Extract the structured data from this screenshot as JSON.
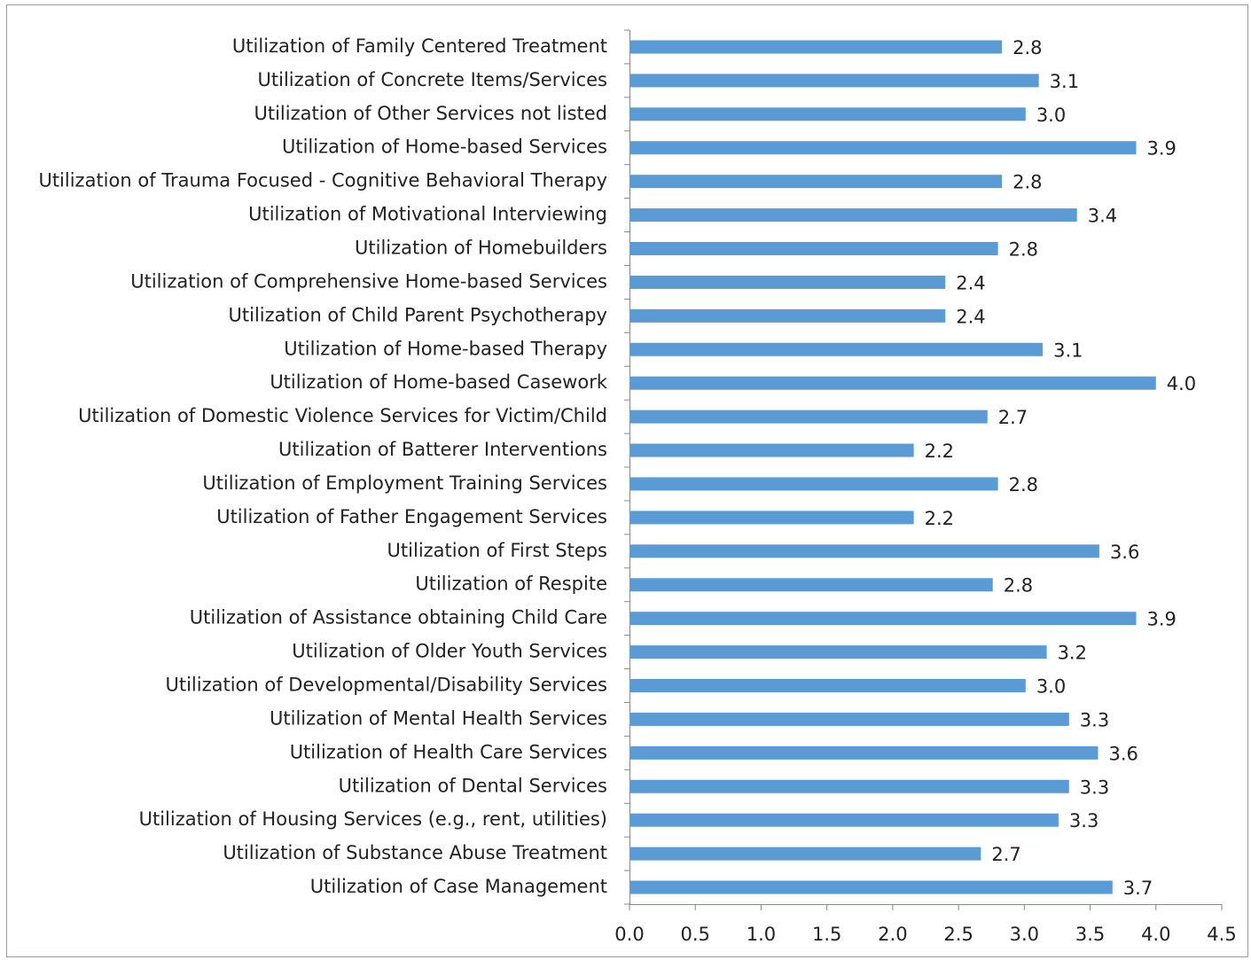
{
  "chart_data": {
    "type": "barh",
    "categories": [
      "Utilization of Family Centered  Treatment",
      "Utilization of Concrete Items/Services",
      "Utilization of Other Services not listed",
      "Utilization of Home-based Services",
      "Utilization of Trauma Focused - Cognitive Behavioral Therapy",
      "Utilization of Motivational Interviewing",
      "Utilization of Homebuilders",
      "Utilization of Comprehensive Home-based Services",
      "Utilization of Child Parent Psychotherapy",
      "Utilization of Home-based Therapy",
      "Utilization of Home-based Casework",
      "Utilization of Domestic Violence Services for Victim/Child",
      "Utilization of Batterer Interventions",
      "Utilization of Employment Training Services",
      "Utilization of Father Engagement Services",
      "Utilization of First Steps",
      "Utilization of Respite",
      "Utilization of Assistance obtaining Child Care",
      "Utilization of Older Youth Services",
      "Utilization of Developmental/Disability Services",
      "Utilization of Mental Health Services",
      "Utilization of Health Care Services",
      "Utilization of Dental Services",
      "Utilization of Housing Services (e.g., rent, utilities)",
      "Utilization of Substance Abuse Treatment",
      "Utilization of Case Management"
    ],
    "values": [
      2.83,
      3.11,
      3.01,
      3.85,
      2.83,
      3.4,
      2.8,
      2.4,
      2.4,
      3.14,
      4.0,
      2.72,
      2.16,
      2.8,
      2.16,
      3.57,
      2.76,
      3.85,
      3.17,
      3.01,
      3.34,
      3.56,
      3.34,
      3.26,
      2.67,
      3.67
    ],
    "value_labels": [
      "2.8",
      "3.1",
      "3.0",
      "3.9",
      "2.8",
      "3.4",
      "2.8",
      "2.4",
      "2.4",
      "3.1",
      "4.0",
      "2.7",
      "2.2",
      "2.8",
      "2.2",
      "3.6",
      "2.8",
      "3.9",
      "3.2",
      "3.0",
      "3.3",
      "3.6",
      "3.3",
      "3.3",
      "2.7",
      "3.7"
    ],
    "color": "#5b9bd5",
    "xlim": [
      0,
      4.5
    ],
    "xticks": [
      {
        "value": 0,
        "label": "0.0"
      },
      0.5,
      {
        "value": 1,
        "label": "1.0"
      },
      1.5,
      {
        "value": 2,
        "label": "2.0"
      },
      2.5,
      {
        "value": 3,
        "label": "3.0"
      },
      3.5,
      {
        "value": 4,
        "label": "4.0"
      },
      4.5
    ],
    "grid": false
  }
}
